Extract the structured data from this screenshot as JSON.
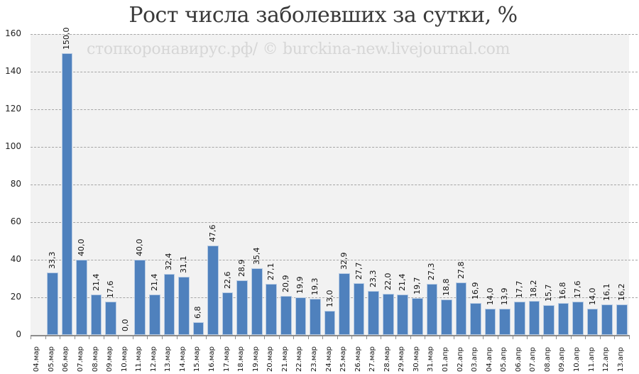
{
  "chart_data": {
    "type": "bar",
    "title": "Рост числа заболевших за сутки, %",
    "watermark": "стопкоронавирус.рф/ © burckina-new.livejournal.com",
    "xlabel": "",
    "ylabel": "",
    "ylim": [
      0,
      160
    ],
    "yticks": [
      0,
      20,
      40,
      60,
      80,
      100,
      120,
      140,
      160
    ],
    "grid": true,
    "legend": null,
    "bar_color": "#4f81bd",
    "categories": [
      "04.мар",
      "05.мар",
      "06.мар",
      "07.мар",
      "08.мар",
      "09.мар",
      "10.мар",
      "11.мар",
      "12.мар",
      "13.мар",
      "14.мар",
      "15.мар",
      "16.мар",
      "17.мар",
      "18.мар",
      "19.мар",
      "20.мар",
      "21.мар",
      "22.мар",
      "23.мар",
      "24.мар",
      "25.мар",
      "26.мар",
      "27.мар",
      "28.мар",
      "29.мар",
      "30.мар",
      "31.мар",
      "01.апр",
      "02.апр",
      "03.апр",
      "04.апр",
      "05.апр",
      "06.апр",
      "07.апр",
      "08.апр",
      "09.апр",
      "10.апр",
      "11.апр",
      "12.апр",
      "13.апр"
    ],
    "values": [
      null,
      33.3,
      150.0,
      40.0,
      21.4,
      17.6,
      0.0,
      40.0,
      21.4,
      32.4,
      31.1,
      6.8,
      47.6,
      22.6,
      28.9,
      35.4,
      27.1,
      20.9,
      19.9,
      19.3,
      13.0,
      32.9,
      27.7,
      23.3,
      22.0,
      21.4,
      19.7,
      27.3,
      18.8,
      27.8,
      16.9,
      14.0,
      13.9,
      17.7,
      18.2,
      15.7,
      16.8,
      17.6,
      14.0,
      16.1,
      16.2
    ],
    "labels": [
      "",
      "33,3",
      "150,0",
      "40,0",
      "21,4",
      "17,6",
      "0,0",
      "40,0",
      "21,4",
      "32,4",
      "31,1",
      "6,8",
      "47,6",
      "22,6",
      "28,9",
      "35,4",
      "27,1",
      "20,9",
      "19,9",
      "19,3",
      "13,0",
      "32,9",
      "27,7",
      "23,3",
      "22,0",
      "21,4",
      "19,7",
      "27,3",
      "18,8",
      "27,8",
      "16,9",
      "14,0",
      "13,9",
      "17,7",
      "18,2",
      "15,7",
      "16,8",
      "17,6",
      "14,0",
      "16,1",
      "16,2"
    ]
  }
}
